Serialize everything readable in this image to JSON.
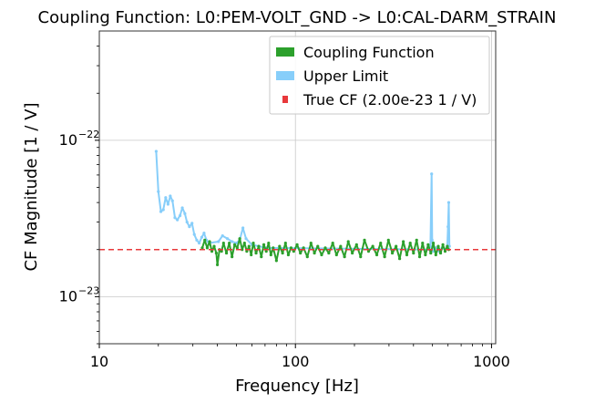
{
  "chart_data": {
    "type": "line",
    "title": "Coupling Function: L0:PEM-VOLT_GND -> L0:CAL-DARM_STRAIN",
    "xlabel": "Frequency [Hz]",
    "ylabel": "CF Magnitude [1 / V]",
    "xscale": "log",
    "yscale": "log",
    "xlim": [
      10,
      1050
    ],
    "ylim": [
      5e-24,
      5e-22
    ],
    "grid": true,
    "legend_position": "top-right",
    "x_ticks": [
      {
        "value": 10,
        "label": "10"
      },
      {
        "value": 100,
        "label": "100"
      },
      {
        "value": 1000,
        "label": "1000"
      }
    ],
    "y_ticks": [
      {
        "value": 1e-23,
        "base": "10",
        "exp": "−23"
      },
      {
        "value": 1e-22,
        "base": "10",
        "exp": "−22"
      }
    ],
    "series": [
      {
        "name": "Upper Limit",
        "color": "#87cefa",
        "points": [
          [
            19.5,
            8.5e-23
          ],
          [
            20.0,
            4.7e-23
          ],
          [
            20.6,
            3.5e-23
          ],
          [
            21.2,
            3.6e-23
          ],
          [
            21.8,
            4.3e-23
          ],
          [
            22.4,
            3.9e-23
          ],
          [
            23.0,
            4.4e-23
          ],
          [
            23.6,
            4.1e-23
          ],
          [
            24.3,
            3.2e-23
          ],
          [
            25.0,
            3.1e-23
          ],
          [
            25.8,
            3.3e-23
          ],
          [
            26.5,
            3.7e-23
          ],
          [
            27.3,
            3.4e-23
          ],
          [
            28.0,
            3e-23
          ],
          [
            28.8,
            2.8e-23
          ],
          [
            29.7,
            2.95e-23
          ],
          [
            30.5,
            2.5e-23
          ],
          [
            31.4,
            2.3e-23
          ],
          [
            32.3,
            2.2e-23
          ],
          [
            33.3,
            2.4e-23
          ],
          [
            34.2,
            2.55e-23
          ],
          [
            35.2,
            2.3e-23
          ],
          [
            36.2,
            2.2e-23
          ],
          [
            40.5,
            2.25e-23
          ],
          [
            42.5,
            2.45e-23
          ],
          [
            45.0,
            2.35e-23
          ],
          [
            47.5,
            2.25e-23
          ],
          [
            50.0,
            2.2e-23
          ],
          [
            52.0,
            2.3e-23
          ],
          [
            54.0,
            2.75e-23
          ],
          [
            56.0,
            2.35e-23
          ],
          [
            60.0,
            2.15e-23
          ],
          [
            65.0,
            2.1e-23
          ],
          [
            72.0,
            2.05e-23
          ],
          [
            480.0,
            2e-23
          ],
          [
            488.0,
            2.1e-23
          ],
          [
            495.0,
            6.1e-23
          ],
          [
            498.0,
            2.3e-23
          ],
          [
            505.0,
            1.95e-23
          ],
          [
            520.0,
            2.05e-23
          ],
          [
            540.0,
            1.95e-23
          ],
          [
            560.0,
            2.05e-23
          ],
          [
            580.0,
            2e-23
          ],
          [
            595.0,
            2.1e-23
          ],
          [
            600.0,
            2.8e-23
          ],
          [
            605.0,
            4e-23
          ],
          [
            610.0,
            2.1e-23
          ]
        ]
      },
      {
        "name": "Coupling Function",
        "color": "#2ca02c",
        "points": [
          [
            33.5,
            2.05e-23
          ],
          [
            34.5,
            2.3e-23
          ],
          [
            35.5,
            2.05e-23
          ],
          [
            36.5,
            2.25e-23
          ],
          [
            37.5,
            1.95e-23
          ],
          [
            38.5,
            2.1e-23
          ],
          [
            39.5,
            1.9e-23
          ],
          [
            40.0,
            1.6e-23
          ],
          [
            41.0,
            2e-23
          ],
          [
            42.0,
            1.95e-23
          ],
          [
            43.0,
            2.2e-23
          ],
          [
            44.5,
            1.9e-23
          ],
          [
            46.0,
            2.2e-23
          ],
          [
            47.5,
            1.8e-23
          ],
          [
            49.0,
            2.15e-23
          ],
          [
            50.5,
            2.05e-23
          ],
          [
            52.0,
            2.35e-23
          ],
          [
            53.5,
            2e-23
          ],
          [
            55.0,
            2.2e-23
          ],
          [
            56.5,
            1.95e-23
          ],
          [
            58.0,
            2.1e-23
          ],
          [
            59.5,
            1.85e-23
          ],
          [
            61.0,
            2.2e-23
          ],
          [
            63.0,
            1.9e-23
          ],
          [
            65.0,
            2.1e-23
          ],
          [
            67.0,
            1.8e-23
          ],
          [
            69.0,
            2.15e-23
          ],
          [
            71.0,
            1.95e-23
          ],
          [
            73.0,
            2.2e-23
          ],
          [
            75.0,
            1.85e-23
          ],
          [
            77.0,
            2.05e-23
          ],
          [
            80.0,
            1.7e-23
          ],
          [
            83.0,
            2.1e-23
          ],
          [
            86.0,
            1.9e-23
          ],
          [
            89.0,
            2.2e-23
          ],
          [
            92.0,
            1.85e-23
          ],
          [
            95.0,
            2.05e-23
          ],
          [
            98.0,
            1.95e-23
          ],
          [
            102.0,
            2.15e-23
          ],
          [
            106.0,
            1.9e-23
          ],
          [
            110.0,
            2.05e-23
          ],
          [
            115.0,
            1.8e-23
          ],
          [
            120.0,
            2.2e-23
          ],
          [
            125.0,
            1.9e-23
          ],
          [
            130.0,
            2.1e-23
          ],
          [
            136.0,
            1.85e-23
          ],
          [
            142.0,
            2.05e-23
          ],
          [
            148.0,
            1.9e-23
          ],
          [
            155.0,
            2.2e-23
          ],
          [
            162.0,
            1.85e-23
          ],
          [
            170.0,
            2.1e-23
          ],
          [
            178.0,
            1.8e-23
          ],
          [
            186.0,
            2.25e-23
          ],
          [
            195.0,
            1.9e-23
          ],
          [
            205.0,
            2.15e-23
          ],
          [
            215.0,
            1.8e-23
          ],
          [
            225.0,
            2.3e-23
          ],
          [
            236.0,
            1.95e-23
          ],
          [
            248.0,
            2.1e-23
          ],
          [
            260.0,
            1.85e-23
          ],
          [
            272.0,
            2.2e-23
          ],
          [
            285.0,
            1.8e-23
          ],
          [
            298.0,
            2.3e-23
          ],
          [
            312.0,
            1.9e-23
          ],
          [
            326.0,
            2.1e-23
          ],
          [
            340.0,
            1.75e-23
          ],
          [
            355.0,
            2.25e-23
          ],
          [
            370.0,
            1.85e-23
          ],
          [
            385.0,
            2.2e-23
          ],
          [
            400.0,
            1.9e-23
          ],
          [
            415.0,
            2.3e-23
          ],
          [
            430.0,
            1.8e-23
          ],
          [
            445.0,
            2.2e-23
          ],
          [
            460.0,
            1.85e-23
          ],
          [
            475.0,
            2.15e-23
          ],
          [
            490.0,
            1.9e-23
          ],
          [
            505.0,
            2.2e-23
          ],
          [
            520.0,
            1.85e-23
          ],
          [
            535.0,
            2.1e-23
          ],
          [
            550.0,
            1.9e-23
          ],
          [
            565.0,
            2.15e-23
          ],
          [
            580.0,
            1.95e-23
          ],
          [
            595.0,
            2.1e-23
          ],
          [
            605.0,
            2e-23
          ]
        ]
      },
      {
        "name": "True CF (2.00e-23 1 / V)",
        "color": "#e8383b",
        "style": "dashed",
        "constant": 2e-23
      }
    ]
  }
}
